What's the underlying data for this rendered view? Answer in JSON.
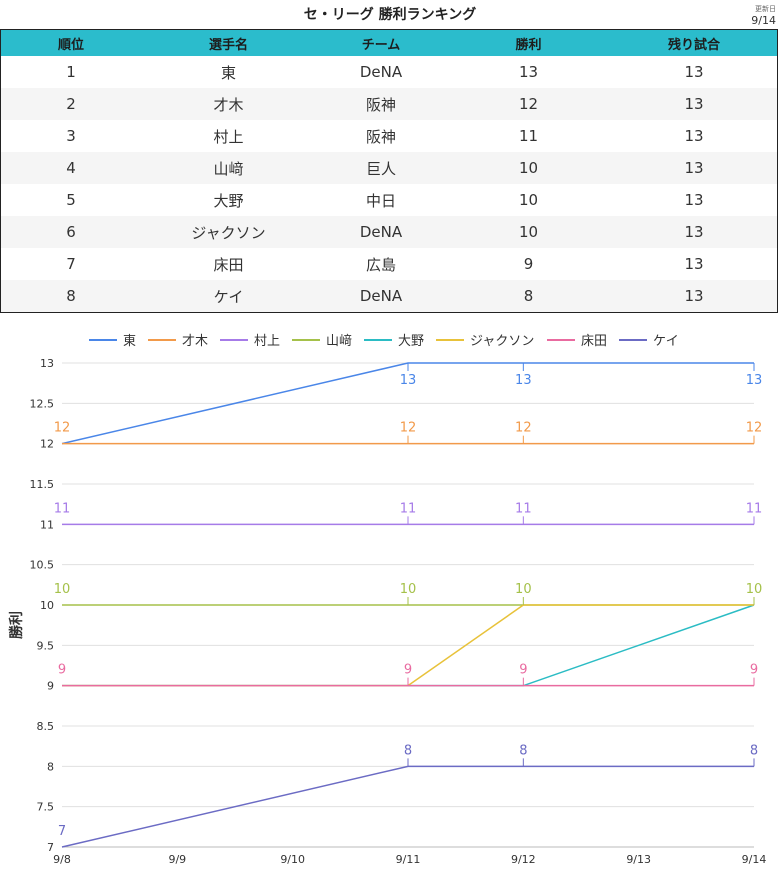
{
  "page": {
    "title": "セ・リーグ 勝利ランキング",
    "updated_label": "更新日",
    "updated_value": "9/14"
  },
  "table": {
    "headers": [
      "順位",
      "選手名",
      "チーム",
      "勝利",
      "残り試合"
    ],
    "rows": [
      [
        "1",
        "東",
        "DeNA",
        "13",
        "13"
      ],
      [
        "2",
        "才木",
        "阪神",
        "12",
        "13"
      ],
      [
        "3",
        "村上",
        "阪神",
        "11",
        "13"
      ],
      [
        "4",
        "山﨑",
        "巨人",
        "10",
        "13"
      ],
      [
        "5",
        "大野",
        "中日",
        "10",
        "13"
      ],
      [
        "6",
        "ジャクソン",
        "DeNA",
        "10",
        "13"
      ],
      [
        "7",
        "床田",
        "広島",
        "9",
        "13"
      ],
      [
        "8",
        "ケイ",
        "DeNA",
        "8",
        "13"
      ]
    ]
  },
  "chart_data": {
    "type": "line",
    "ylabel": "勝利",
    "xlabel": "",
    "x": [
      "9/8",
      "9/9",
      "9/10",
      "9/11",
      "9/12",
      "9/13",
      "9/14"
    ],
    "ylim": [
      7,
      13
    ],
    "yticks": [
      7,
      7.5,
      8,
      8.5,
      9,
      9.5,
      10,
      10.5,
      11,
      11.5,
      12,
      12.5,
      13
    ],
    "grid": true,
    "legend_position": "top",
    "series": [
      {
        "name": "東",
        "color": "#4a86e8",
        "points": [
          [
            "9/8",
            12
          ],
          [
            "9/11",
            13
          ],
          [
            "9/12",
            13
          ],
          [
            "9/14",
            13
          ]
        ],
        "labels": [
          [
            "9/11",
            13
          ],
          [
            "9/12",
            13
          ],
          [
            "9/14",
            13
          ]
        ]
      },
      {
        "name": "才木",
        "color": "#f29a4a",
        "points": [
          [
            "9/8",
            12
          ],
          [
            "9/11",
            12
          ],
          [
            "9/12",
            12
          ],
          [
            "9/14",
            12
          ]
        ],
        "labels": [
          [
            "9/8",
            12
          ],
          [
            "9/11",
            12
          ],
          [
            "9/12",
            12
          ],
          [
            "9/14",
            12
          ]
        ]
      },
      {
        "name": "村上",
        "color": "#a67be8",
        "points": [
          [
            "9/8",
            11
          ],
          [
            "9/11",
            11
          ],
          [
            "9/12",
            11
          ],
          [
            "9/14",
            11
          ]
        ],
        "labels": [
          [
            "9/8",
            11
          ],
          [
            "9/11",
            11
          ],
          [
            "9/12",
            11
          ],
          [
            "9/14",
            11
          ]
        ]
      },
      {
        "name": "山﨑",
        "color": "#a5c14a",
        "points": [
          [
            "9/8",
            10
          ],
          [
            "9/11",
            10
          ],
          [
            "9/12",
            10
          ],
          [
            "9/14",
            10
          ]
        ],
        "labels": [
          [
            "9/8",
            10
          ],
          [
            "9/11",
            10
          ],
          [
            "9/12",
            10
          ],
          [
            "9/14",
            10
          ]
        ]
      },
      {
        "name": "大野",
        "color": "#2bbcc4",
        "points": [
          [
            "9/8",
            9
          ],
          [
            "9/11",
            9
          ],
          [
            "9/12",
            9
          ],
          [
            "9/14",
            10
          ]
        ],
        "labels": []
      },
      {
        "name": "ジャクソン",
        "color": "#e8c23a",
        "points": [
          [
            "9/8",
            9
          ],
          [
            "9/11",
            9
          ],
          [
            "9/12",
            10
          ],
          [
            "9/14",
            10
          ]
        ],
        "labels": []
      },
      {
        "name": "床田",
        "color": "#e96ba0",
        "points": [
          [
            "9/8",
            9
          ],
          [
            "9/11",
            9
          ],
          [
            "9/12",
            9
          ],
          [
            "9/14",
            9
          ]
        ],
        "labels": [
          [
            "9/8",
            9
          ],
          [
            "9/11",
            9
          ],
          [
            "9/12",
            9
          ],
          [
            "9/14",
            9
          ]
        ]
      },
      {
        "name": "ケイ",
        "color": "#6b6bc4",
        "points": [
          [
            "9/8",
            7
          ],
          [
            "9/11",
            8
          ],
          [
            "9/12",
            8
          ],
          [
            "9/14",
            8
          ]
        ],
        "labels": [
          [
            "9/8",
            7
          ],
          [
            "9/11",
            8
          ],
          [
            "9/12",
            8
          ],
          [
            "9/14",
            8
          ]
        ]
      }
    ]
  }
}
